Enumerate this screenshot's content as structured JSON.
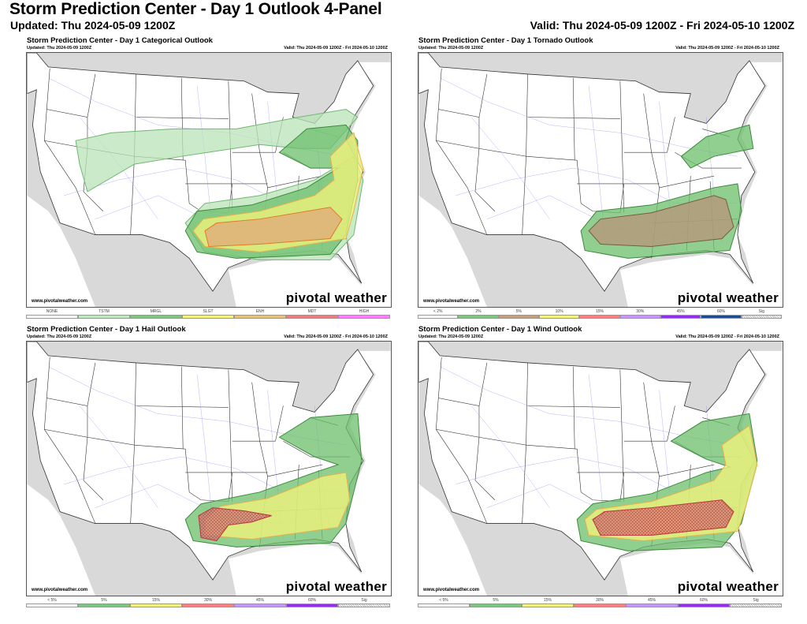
{
  "header": {
    "title": "Storm Prediction Center - Day 1 Outlook 4-Panel",
    "updated": "Updated: Thu 2024-05-09 1200Z",
    "valid": "Valid: Thu 2024-05-09 1200Z - Fri 2024-05-10 1200Z"
  },
  "panels": [
    {
      "id": "categorical",
      "title": "Storm Prediction Center - Day 1 Categorical Outlook",
      "updated": "Updated: Thu 2024-05-09 1200Z",
      "valid": "Valid: Thu 2024-05-09 1200Z - Fri 2024-05-10 1200Z",
      "url": "www.pivotalweather.com",
      "logo": "pivotal weather",
      "legend": [
        {
          "label": "NONE",
          "color": "#ffffff"
        },
        {
          "label": "TSTM",
          "color": "#c1e9c1"
        },
        {
          "label": "MRGL",
          "color": "#7fc57f"
        },
        {
          "label": "SLGT",
          "color": "#f6f67f"
        },
        {
          "label": "ENH",
          "color": "#e6c27f"
        },
        {
          "label": "MDT",
          "color": "#e67f7f"
        },
        {
          "label": "HIGH",
          "color": "#ff7fff"
        }
      ]
    },
    {
      "id": "tornado",
      "title": "Storm Prediction Center - Day 1 Tornado Outlook",
      "updated": "Updated: Thu 2024-05-09 1200Z",
      "valid": "Valid: Thu 2024-05-09 1200Z - Fri 2024-05-10 1200Z",
      "url": "www.pivotalweather.com",
      "logo": "pivotal weather",
      "legend": [
        {
          "label": "< 2%",
          "color": "#ffffff"
        },
        {
          "label": "2%",
          "color": "#7fc57f"
        },
        {
          "label": "5%",
          "color": "#c0a080"
        },
        {
          "label": "10%",
          "color": "#f6f67f"
        },
        {
          "label": "15%",
          "color": "#f88080"
        },
        {
          "label": "30%",
          "color": "#c896f8"
        },
        {
          "label": "45%",
          "color": "#9030e8"
        },
        {
          "label": "60%",
          "color": "#1e4c8c"
        },
        {
          "label": "Sig",
          "color": "sig"
        }
      ]
    },
    {
      "id": "hail",
      "title": "Storm Prediction Center - Day 1 Hail Outlook",
      "updated": "Updated: Thu 2024-05-09 1200Z",
      "valid": "Valid: Thu 2024-05-09 1200Z - Fri 2024-05-10 1200Z",
      "url": "www.pivotalweather.com",
      "logo": "pivotal weather",
      "legend": [
        {
          "label": "< 5%",
          "color": "#ffffff"
        },
        {
          "label": "5%",
          "color": "#7fc57f"
        },
        {
          "label": "15%",
          "color": "#f6f67f"
        },
        {
          "label": "30%",
          "color": "#f88080"
        },
        {
          "label": "45%",
          "color": "#c896f8"
        },
        {
          "label": "60%",
          "color": "#9030e8"
        },
        {
          "label": "Sig",
          "color": "sig"
        }
      ]
    },
    {
      "id": "wind",
      "title": "Storm Prediction Center - Day 1 Wind Outlook",
      "updated": "Updated: Thu 2024-05-09 1200Z",
      "valid": "Valid: Thu 2024-05-09 1200Z - Fri 2024-05-10 1200Z",
      "url": "www.pivotalweather.com",
      "logo": "pivotal weather",
      "legend": [
        {
          "label": "< 5%",
          "color": "#ffffff"
        },
        {
          "label": "5%",
          "color": "#7fc57f"
        },
        {
          "label": "15%",
          "color": "#f6f67f"
        },
        {
          "label": "30%",
          "color": "#f88080"
        },
        {
          "label": "45%",
          "color": "#c896f8"
        },
        {
          "label": "60%",
          "color": "#9030e8"
        },
        {
          "label": "Sig",
          "color": "sig"
        }
      ]
    }
  ]
}
